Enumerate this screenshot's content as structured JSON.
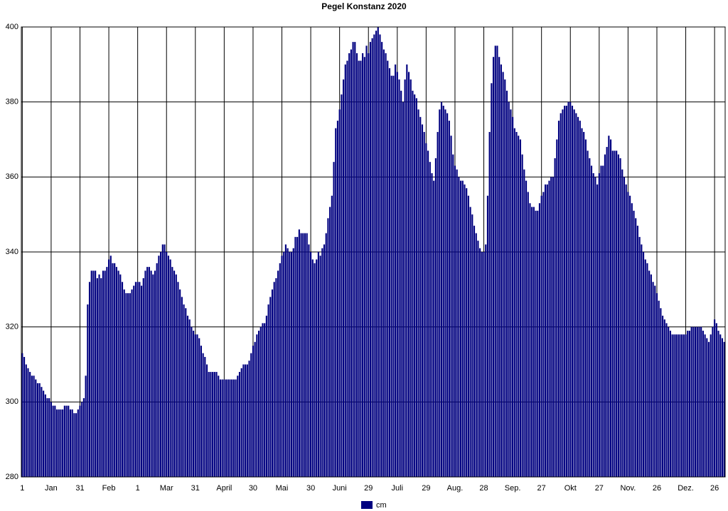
{
  "chart_data": {
    "type": "bar",
    "title": "Pegel Konstanz 2020",
    "categories": [
      "1",
      null,
      null,
      null,
      null,
      null,
      null,
      null,
      null,
      null,
      null,
      null,
      null,
      null,
      null,
      "Jan",
      null,
      null,
      null,
      null,
      null,
      null,
      null,
      null,
      null,
      null,
      null,
      null,
      null,
      null,
      "31",
      null,
      null,
      null,
      null,
      null,
      null,
      null,
      null,
      null,
      null,
      null,
      null,
      null,
      null,
      "Feb",
      null,
      null,
      null,
      null,
      null,
      null,
      null,
      null,
      null,
      null,
      null,
      null,
      null,
      null,
      "1",
      null,
      null,
      null,
      null,
      null,
      null,
      null,
      null,
      null,
      null,
      null,
      null,
      null,
      null,
      "Mar",
      null,
      null,
      null,
      null,
      null,
      null,
      null,
      null,
      null,
      null,
      null,
      null,
      null,
      null,
      "31",
      null,
      null,
      null,
      null,
      null,
      null,
      null,
      null,
      null,
      null,
      null,
      null,
      null,
      null,
      "April",
      null,
      null,
      null,
      null,
      null,
      null,
      null,
      null,
      null,
      null,
      null,
      null,
      null,
      null,
      "30",
      null,
      null,
      null,
      null,
      null,
      null,
      null,
      null,
      null,
      null,
      null,
      null,
      null,
      null,
      "Mai",
      null,
      null,
      null,
      null,
      null,
      null,
      null,
      null,
      null,
      null,
      null,
      null,
      null,
      null,
      "30",
      null,
      null,
      null,
      null,
      null,
      null,
      null,
      null,
      null,
      null,
      null,
      null,
      null,
      null,
      "Juni",
      null,
      null,
      null,
      null,
      null,
      null,
      null,
      null,
      null,
      null,
      null,
      null,
      null,
      null,
      "29",
      null,
      null,
      null,
      null,
      null,
      null,
      null,
      null,
      null,
      null,
      null,
      null,
      null,
      null,
      "Juli",
      null,
      null,
      null,
      null,
      null,
      null,
      null,
      null,
      null,
      null,
      null,
      null,
      null,
      null,
      "29",
      null,
      null,
      null,
      null,
      null,
      null,
      null,
      null,
      null,
      null,
      null,
      null,
      null,
      null,
      "Aug.",
      null,
      null,
      null,
      null,
      null,
      null,
      null,
      null,
      null,
      null,
      null,
      null,
      null,
      null,
      "28",
      null,
      null,
      null,
      null,
      null,
      null,
      null,
      null,
      null,
      null,
      null,
      null,
      null,
      null,
      "Sep.",
      null,
      null,
      null,
      null,
      null,
      null,
      null,
      null,
      null,
      null,
      null,
      null,
      null,
      null,
      "27",
      null,
      null,
      null,
      null,
      null,
      null,
      null,
      null,
      null,
      null,
      null,
      null,
      null,
      null,
      "Okt",
      null,
      null,
      null,
      null,
      null,
      null,
      null,
      null,
      null,
      null,
      null,
      null,
      null,
      null,
      "27",
      null,
      null,
      null,
      null,
      null,
      null,
      null,
      null,
      null,
      null,
      null,
      null,
      null,
      null,
      "Nov.",
      null,
      null,
      null,
      null,
      null,
      null,
      null,
      null,
      null,
      null,
      null,
      null,
      null,
      null,
      "26",
      null,
      null,
      null,
      null,
      null,
      null,
      null,
      null,
      null,
      null,
      null,
      null,
      null,
      null,
      "Dez.",
      null,
      null,
      null,
      null,
      null,
      null,
      null,
      null,
      null,
      null,
      null,
      null,
      null,
      null,
      "26",
      null,
      null,
      null,
      null,
      null
    ],
    "series": [
      {
        "name": "cm",
        "color": "#000080",
        "values": [
          313,
          312,
          310,
          309,
          308,
          307,
          307,
          306,
          305,
          305,
          304,
          303,
          302,
          301,
          301,
          300,
          299,
          299,
          298,
          298,
          298,
          298,
          299,
          299,
          299,
          298,
          298,
          297,
          297,
          298,
          299,
          300,
          301,
          307,
          326,
          332,
          335,
          335,
          335,
          333,
          334,
          333,
          335,
          335,
          336,
          338,
          339,
          337,
          337,
          336,
          335,
          334,
          332,
          330,
          329,
          329,
          329,
          330,
          331,
          332,
          332,
          332,
          331,
          333,
          335,
          336,
          336,
          335,
          334,
          335,
          337,
          339,
          340,
          342,
          342,
          340,
          339,
          338,
          336,
          335,
          334,
          332,
          330,
          328,
          326,
          325,
          323,
          322,
          320,
          319,
          318,
          318,
          317,
          315,
          313,
          312,
          310,
          308,
          308,
          308,
          308,
          308,
          307,
          306,
          306,
          306,
          306,
          306,
          306,
          306,
          306,
          306,
          307,
          308,
          309,
          310,
          310,
          310,
          311,
          313,
          315,
          316,
          318,
          319,
          320,
          321,
          321,
          323,
          326,
          328,
          330,
          332,
          333,
          335,
          337,
          339,
          340,
          342,
          341,
          340,
          340,
          341,
          344,
          344,
          346,
          345,
          345,
          345,
          345,
          342,
          340,
          338,
          337,
          338,
          340,
          339,
          341,
          342,
          345,
          349,
          352,
          355,
          364,
          373,
          375,
          378,
          382,
          386,
          390,
          391,
          393,
          394,
          396,
          396,
          393,
          391,
          391,
          393,
          392,
          395,
          393,
          396,
          397,
          398,
          399,
          400,
          398,
          396,
          394,
          393,
          391,
          389,
          387,
          387,
          390,
          388,
          386,
          383,
          380,
          386,
          390,
          388,
          386,
          383,
          382,
          381,
          378,
          376,
          374,
          372,
          369,
          367,
          364,
          361,
          359,
          365,
          372,
          378,
          380,
          379,
          378,
          377,
          375,
          371,
          366,
          363,
          362,
          360,
          359,
          359,
          358,
          357,
          355,
          352,
          350,
          347,
          345,
          343,
          341,
          340,
          340,
          342,
          355,
          372,
          385,
          392,
          395,
          395,
          392,
          390,
          388,
          386,
          383,
          380,
          378,
          376,
          373,
          372,
          371,
          370,
          366,
          362,
          359,
          356,
          353,
          352,
          352,
          351,
          351,
          353,
          355,
          356,
          358,
          358,
          359,
          360,
          360,
          365,
          370,
          375,
          377,
          378,
          379,
          379,
          380,
          380,
          379,
          378,
          377,
          376,
          375,
          373,
          372,
          370,
          367,
          365,
          363,
          361,
          360,
          358,
          361,
          363,
          363,
          366,
          368,
          371,
          370,
          367,
          367,
          367,
          366,
          365,
          362,
          360,
          358,
          356,
          355,
          353,
          351,
          349,
          347,
          344,
          342,
          340,
          338,
          337,
          335,
          334,
          332,
          331,
          329,
          327,
          325,
          323,
          322,
          321,
          320,
          319,
          318,
          318,
          318,
          318,
          318,
          318,
          318,
          318,
          319,
          319,
          320,
          320,
          320,
          320,
          320,
          320,
          319,
          318,
          317,
          316,
          318,
          320,
          322,
          321,
          319,
          318,
          317,
          316
        ]
      }
    ],
    "ylim": [
      280,
      400
    ],
    "yticks": [
      280,
      300,
      320,
      340,
      360,
      380,
      400
    ],
    "grid": true
  }
}
